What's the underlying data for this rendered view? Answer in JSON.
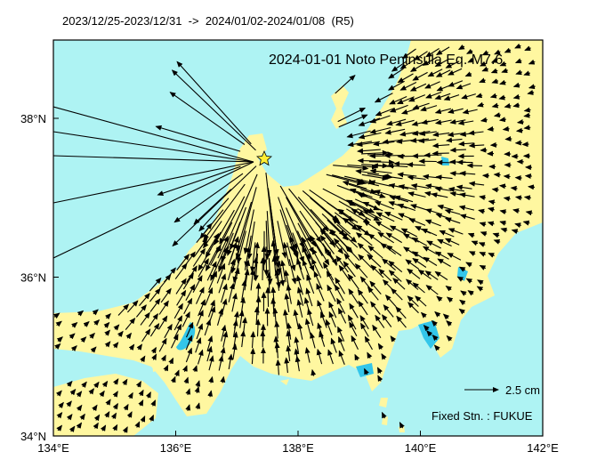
{
  "header": "2023/12/25-2023/12/31  ->  2024/01/02-2024/01/08  (R5)",
  "title": "2024-01-01 Noto Peninsula Eq. M7.6",
  "scale_label": "2.5 cm",
  "fixed_station": "Fixed Stn. : FUKUE",
  "x_axis": {
    "ticks": [
      "134°E",
      "136°E",
      "138°E",
      "140°E",
      "142°E"
    ]
  },
  "y_axis": {
    "ticks": [
      "34°N",
      "36°N",
      "38°N"
    ]
  }
}
